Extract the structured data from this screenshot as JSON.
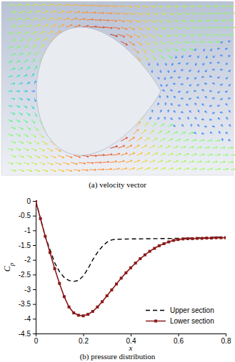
{
  "panel_a": {
    "caption": "(a) velocity vector"
  },
  "chart_data": {
    "type": "line",
    "title": "(b) pressure distribution",
    "x_label": "x",
    "y_label": "Cp",
    "xlim": [
      0,
      0.8
    ],
    "xticks": [
      0,
      0.2,
      0.4,
      0.6,
      0.8
    ],
    "ylim": [
      -4.5,
      0
    ],
    "yticks": [
      0,
      -0.5,
      -1,
      -1.5,
      -2,
      -2.5,
      -3,
      -3.5,
      -4,
      -4.5
    ],
    "grid": false,
    "legend": "lower right",
    "series": [
      {
        "name": "Upper section",
        "color": "#000000",
        "line_style": "dashed",
        "marker": "none",
        "x": [
          0,
          0.02,
          0.04,
          0.06,
          0.08,
          0.1,
          0.12,
          0.14,
          0.16,
          0.18,
          0.2,
          0.22,
          0.24,
          0.26,
          0.28,
          0.3,
          0.32,
          0.34,
          0.4,
          0.5,
          0.6,
          0.7,
          0.8
        ],
        "values": [
          0,
          -0.6,
          -1.2,
          -1.65,
          -2.1,
          -2.4,
          -2.6,
          -2.7,
          -2.73,
          -2.7,
          -2.55,
          -2.3,
          -2.0,
          -1.75,
          -1.55,
          -1.4,
          -1.32,
          -1.3,
          -1.29,
          -1.28,
          -1.27,
          -1.25,
          -1.22
        ]
      },
      {
        "name": "Lower section",
        "color": "#8b1a1a",
        "line_style": "solid",
        "marker": "square",
        "x": [
          0,
          0.02,
          0.04,
          0.06,
          0.08,
          0.1,
          0.12,
          0.14,
          0.16,
          0.18,
          0.2,
          0.22,
          0.24,
          0.26,
          0.28,
          0.3,
          0.32,
          0.34,
          0.36,
          0.38,
          0.4,
          0.42,
          0.44,
          0.46,
          0.48,
          0.5,
          0.52,
          0.54,
          0.56,
          0.58,
          0.6,
          0.62,
          0.64,
          0.66,
          0.68,
          0.7,
          0.72,
          0.74,
          0.76,
          0.78,
          0.8
        ],
        "values": [
          0,
          -0.6,
          -1.2,
          -1.75,
          -2.3,
          -2.8,
          -3.25,
          -3.6,
          -3.8,
          -3.88,
          -3.9,
          -3.85,
          -3.75,
          -3.6,
          -3.42,
          -3.22,
          -3.02,
          -2.82,
          -2.62,
          -2.44,
          -2.27,
          -2.11,
          -1.96,
          -1.83,
          -1.71,
          -1.61,
          -1.52,
          -1.45,
          -1.39,
          -1.34,
          -1.31,
          -1.29,
          -1.28,
          -1.28,
          -1.27,
          -1.27,
          -1.26,
          -1.26,
          -1.25,
          -1.25,
          -1.25
        ]
      }
    ]
  }
}
